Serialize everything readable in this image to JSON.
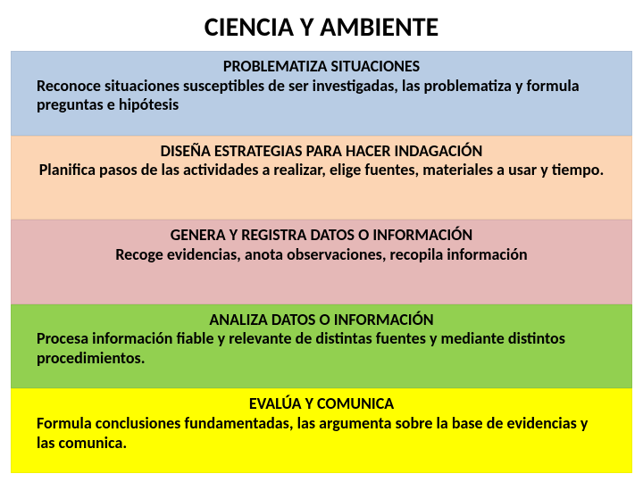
{
  "title": "CIENCIA Y AMBIENTE",
  "colors": {
    "background": "#ffffff",
    "text": "#000000"
  },
  "typography": {
    "title_fontsize": 30,
    "section_fontsize": 18,
    "font_family": "Calibri"
  },
  "sections": [
    {
      "heading": "PROBLEMATIZA SITUACIONES",
      "body": "Reconoce situaciones susceptibles de ser investigadas, las problematiza y formula preguntas e hipótesis",
      "background_color": "#b8cce4",
      "body_align": "left"
    },
    {
      "heading": "DISEÑA ESTRATEGIAS PARA HACER INDAGACIÓN",
      "body": "Planifica pasos de las actividades a realizar, elige fuentes, materiales a usar y tiempo.",
      "background_color": "#fcd5b4",
      "body_align": "center"
    },
    {
      "heading": "GENERA Y REGISTRA DATOS O INFORMACIÓN",
      "body": "Recoge evidencias, anota observaciones, recopila información",
      "background_color": "#e5b8b7",
      "body_align": "center"
    },
    {
      "heading": "ANALIZA DATOS O INFORMACIÓN",
      "body": "Procesa información fiable y relevante de distintas fuentes y mediante distintos procedimientos.",
      "background_color": "#92d050",
      "body_align": "left"
    },
    {
      "heading": "EVALÚA Y COMUNICA",
      "body": "Formula conclusiones fundamentadas, las argumenta sobre la base de evidencias y las comunica.",
      "background_color": "#ffff00",
      "body_align": "left"
    }
  ]
}
